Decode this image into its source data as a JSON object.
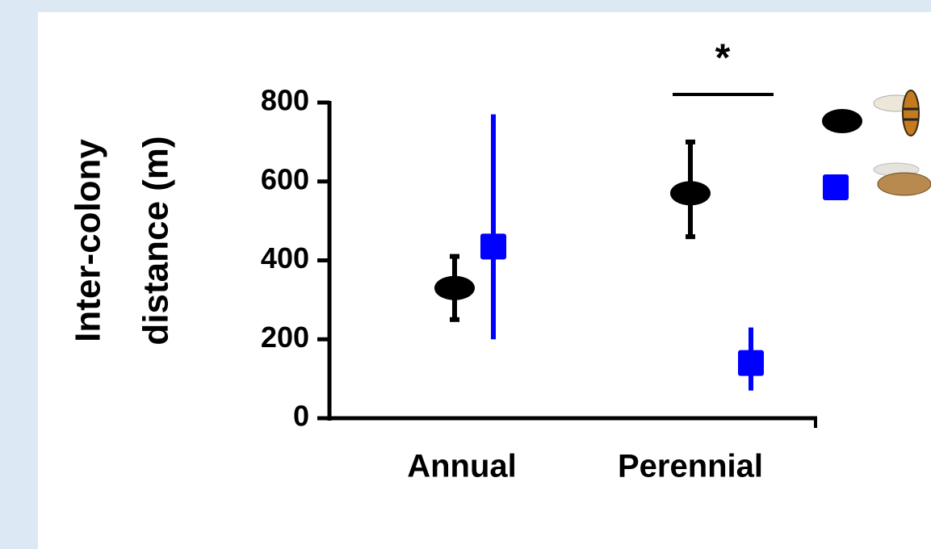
{
  "chart_data": {
    "type": "errorbar",
    "ylabel": [
      "Inter-colony",
      "distance (m)"
    ],
    "categories": [
      "Annual",
      "Perennial"
    ],
    "series": [
      {
        "color": "#000000",
        "marker": "ellipse",
        "values": [
          330,
          570
        ],
        "err_low": [
          80,
          110
        ],
        "err_high": [
          80,
          130
        ]
      },
      {
        "color": "#0000ff",
        "marker": "square",
        "values": [
          435,
          140
        ],
        "err_low": [
          235,
          70
        ],
        "err_high": [
          335,
          90
        ]
      }
    ],
    "ylim": [
      0,
      800
    ],
    "yticks": [
      0,
      200,
      400,
      600,
      800
    ],
    "annotations": [
      "*"
    ]
  }
}
